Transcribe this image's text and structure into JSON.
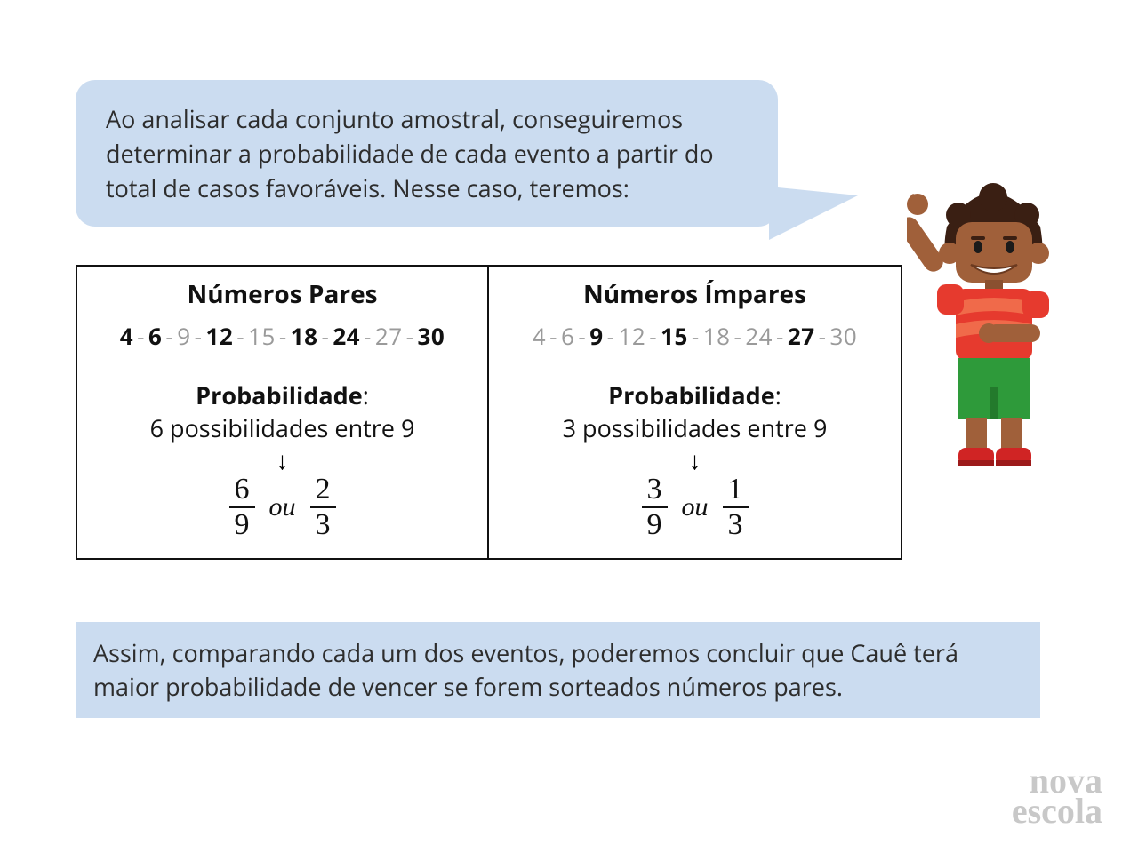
{
  "colors": {
    "bubble_bg": "#cbdcf0",
    "text": "#2d2d2d",
    "border": "#111111",
    "faded": "#9a9a9a",
    "logo": "#c8c8c8",
    "page_bg": "#ffffff"
  },
  "speech": "Ao analisar cada conjunto amostral, conseguiremos determinar a probabilidade de cada evento a partir do total de casos favoráveis. Nesse caso, teremos:",
  "table": {
    "left": {
      "title": "Números Pares",
      "sequence": [
        {
          "v": "4",
          "hi": true
        },
        {
          "v": "6",
          "hi": true
        },
        {
          "v": "9",
          "hi": false
        },
        {
          "v": "12",
          "hi": true
        },
        {
          "v": "15",
          "hi": false
        },
        {
          "v": "18",
          "hi": true
        },
        {
          "v": "24",
          "hi": true
        },
        {
          "v": "27",
          "hi": false
        },
        {
          "v": "30",
          "hi": true
        }
      ],
      "prob_label": "Probabilidade",
      "prob_sub": "6 possibilidades entre 9",
      "frac1_n": "6",
      "frac1_d": "9",
      "connector": "ou",
      "frac2_n": "2",
      "frac2_d": "3"
    },
    "right": {
      "title": "Números Ímpares",
      "sequence": [
        {
          "v": "4",
          "hi": false
        },
        {
          "v": "6",
          "hi": false
        },
        {
          "v": "9",
          "hi": true
        },
        {
          "v": "12",
          "hi": false
        },
        {
          "v": "15",
          "hi": true
        },
        {
          "v": "18",
          "hi": false
        },
        {
          "v": "24",
          "hi": false
        },
        {
          "v": "27",
          "hi": true
        },
        {
          "v": "30",
          "hi": false
        }
      ],
      "prob_label": "Probabilidade",
      "prob_sub": "3 possibilidades entre 9",
      "frac1_n": "3",
      "frac1_d": "9",
      "connector": "ou",
      "frac2_n": "1",
      "frac2_d": "3"
    }
  },
  "conclusion": "Assim, comparando cada um dos eventos, poderemos concluir que Cauê terá maior probabilidade de vencer se forem sorteados números pares.",
  "logo": {
    "line1": "nova",
    "line2": "escola"
  },
  "character": {
    "skin": "#a0603a",
    "hair": "#3a1f13",
    "shirt1": "#e63a2e",
    "shirt2": "#f06a4a",
    "shorts": "#2e9a3a",
    "shoes": "#d02424",
    "mouth_bg": "#ffffff"
  }
}
